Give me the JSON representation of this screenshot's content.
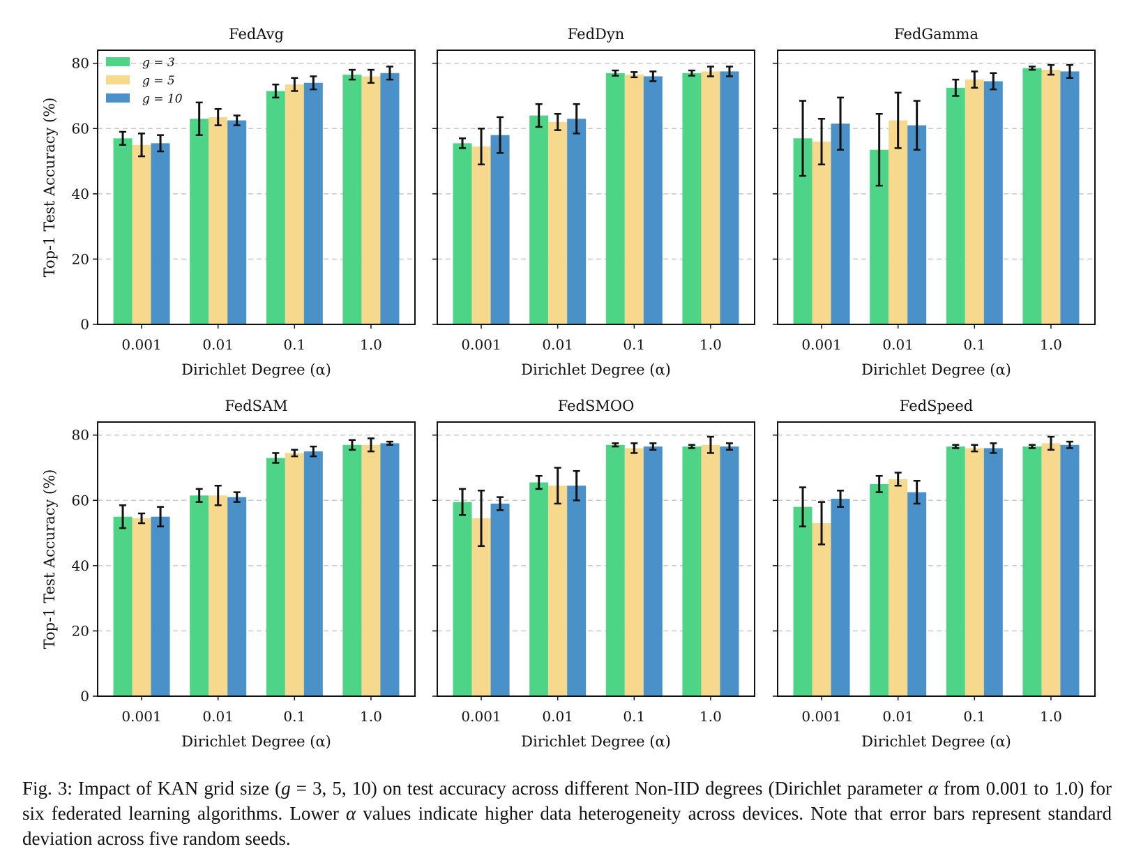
{
  "figure": {
    "colors": [
      "#4dd487",
      "#f7d98e",
      "#4a90c9"
    ],
    "chart_data": [
      {
        "type": "bar",
        "title": "FedAvg",
        "xlabel": "Dirichlet Degree (α)",
        "ylabel": "Top-1 Test Accuracy (%)",
        "categories": [
          "0.001",
          "0.01",
          "0.1",
          "1.0"
        ],
        "ylim": [
          0,
          84
        ],
        "yticks": [
          0,
          20,
          40,
          60,
          80
        ],
        "grid": "horizontal dashed",
        "legend": "top-left",
        "series": [
          {
            "name": "g = 3",
            "values": [
              57.0,
              63.0,
              71.5,
              76.5
            ],
            "errors": [
              2.0,
              5.0,
              2.0,
              1.5
            ]
          },
          {
            "name": "g = 5",
            "values": [
              55.0,
              63.5,
              73.5,
              76.0
            ],
            "errors": [
              3.5,
              2.5,
              2.0,
              2.0
            ]
          },
          {
            "name": "g = 10",
            "values": [
              55.5,
              62.5,
              74.0,
              77.0
            ],
            "errors": [
              2.5,
              1.5,
              2.0,
              2.0
            ]
          }
        ]
      },
      {
        "type": "bar",
        "title": "FedDyn",
        "xlabel": "Dirichlet Degree (α)",
        "ylabel": "",
        "categories": [
          "0.001",
          "0.01",
          "0.1",
          "1.0"
        ],
        "ylim": [
          0,
          84
        ],
        "yticks": [
          0,
          20,
          40,
          60,
          80
        ],
        "grid": "horizontal dashed",
        "series": [
          {
            "name": "g = 3",
            "values": [
              55.5,
              64.0,
              77.0,
              77.0
            ],
            "errors": [
              1.5,
              3.5,
              0.8,
              0.8
            ]
          },
          {
            "name": "g = 5",
            "values": [
              54.5,
              62.0,
              76.5,
              77.5
            ],
            "errors": [
              5.5,
              2.5,
              0.8,
              1.5
            ]
          },
          {
            "name": "g = 10",
            "values": [
              58.0,
              63.0,
              76.0,
              77.5
            ],
            "errors": [
              5.5,
              4.5,
              1.5,
              1.5
            ]
          }
        ]
      },
      {
        "type": "bar",
        "title": "FedGamma",
        "xlabel": "Dirichlet Degree (α)",
        "ylabel": "",
        "categories": [
          "0.001",
          "0.01",
          "0.1",
          "1.0"
        ],
        "ylim": [
          0,
          84
        ],
        "yticks": [
          0,
          20,
          40,
          60,
          80
        ],
        "grid": "horizontal dashed",
        "series": [
          {
            "name": "g = 3",
            "values": [
              57.0,
              53.5,
              72.5,
              78.5
            ],
            "errors": [
              11.5,
              11.0,
              2.5,
              0.5
            ]
          },
          {
            "name": "g = 5",
            "values": [
              56.0,
              62.5,
              75.0,
              78.0
            ],
            "errors": [
              7.0,
              8.5,
              2.5,
              1.5
            ]
          },
          {
            "name": "g = 10",
            "values": [
              61.5,
              61.0,
              74.5,
              77.5
            ],
            "errors": [
              8.0,
              7.5,
              2.5,
              2.0
            ]
          }
        ]
      },
      {
        "type": "bar",
        "title": "FedSAM",
        "xlabel": "Dirichlet Degree (α)",
        "ylabel": "Top-1 Test Accuracy (%)",
        "categories": [
          "0.001",
          "0.01",
          "0.1",
          "1.0"
        ],
        "ylim": [
          0,
          84
        ],
        "yticks": [
          0,
          20,
          40,
          60,
          80
        ],
        "grid": "horizontal dashed",
        "series": [
          {
            "name": "g = 3",
            "values": [
              55.0,
              61.5,
              73.0,
              77.0
            ],
            "errors": [
              3.5,
              2.0,
              1.5,
              1.5
            ]
          },
          {
            "name": "g = 5",
            "values": [
              54.5,
              61.5,
              74.5,
              77.0
            ],
            "errors": [
              1.5,
              3.0,
              1.0,
              2.0
            ]
          },
          {
            "name": "g = 10",
            "values": [
              55.0,
              61.0,
              75.0,
              77.5
            ],
            "errors": [
              3.0,
              1.5,
              1.5,
              0.5
            ]
          }
        ]
      },
      {
        "type": "bar",
        "title": "FedSMOO",
        "xlabel": "Dirichlet Degree (α)",
        "ylabel": "",
        "categories": [
          "0.001",
          "0.01",
          "0.1",
          "1.0"
        ],
        "ylim": [
          0,
          84
        ],
        "yticks": [
          0,
          20,
          40,
          60,
          80
        ],
        "grid": "horizontal dashed",
        "series": [
          {
            "name": "g = 3",
            "values": [
              59.5,
              65.5,
              77.0,
              76.5
            ],
            "errors": [
              4.0,
              2.0,
              0.5,
              0.5
            ]
          },
          {
            "name": "g = 5",
            "values": [
              54.5,
              64.5,
              76.0,
              77.0
            ],
            "errors": [
              8.5,
              5.5,
              1.5,
              2.5
            ]
          },
          {
            "name": "g = 10",
            "values": [
              59.0,
              64.5,
              76.5,
              76.5
            ],
            "errors": [
              2.0,
              4.5,
              1.0,
              1.0
            ]
          }
        ]
      },
      {
        "type": "bar",
        "title": "FedSpeed",
        "xlabel": "Dirichlet Degree (α)",
        "ylabel": "",
        "categories": [
          "0.001",
          "0.01",
          "0.1",
          "1.0"
        ],
        "ylim": [
          0,
          84
        ],
        "yticks": [
          0,
          20,
          40,
          60,
          80
        ],
        "grid": "horizontal dashed",
        "series": [
          {
            "name": "g = 3",
            "values": [
              58.0,
              65.0,
              76.5,
              76.5
            ],
            "errors": [
              6.0,
              2.5,
              0.5,
              0.5
            ]
          },
          {
            "name": "g = 5",
            "values": [
              53.0,
              66.5,
              76.0,
              77.5
            ],
            "errors": [
              6.5,
              2.0,
              1.0,
              2.0
            ]
          },
          {
            "name": "g = 10",
            "values": [
              60.5,
              62.5,
              76.0,
              77.0
            ],
            "errors": [
              2.5,
              3.5,
              1.5,
              1.0
            ]
          }
        ]
      }
    ]
  },
  "caption": {
    "part1": "Fig. 3: Impact of KAN grid size (",
    "g_var": "g",
    "part2": " = 3, 5, 10) on test accuracy across different Non-IID degrees (Dirichlet parameter ",
    "alpha1": "α",
    "part3": " from 0.001 to 1.0) for six federated learning algorithms. Lower ",
    "alpha2": "α",
    "part4": " values indicate higher data heterogeneity across devices. Note that error bars represent standard deviation across five random seeds."
  }
}
